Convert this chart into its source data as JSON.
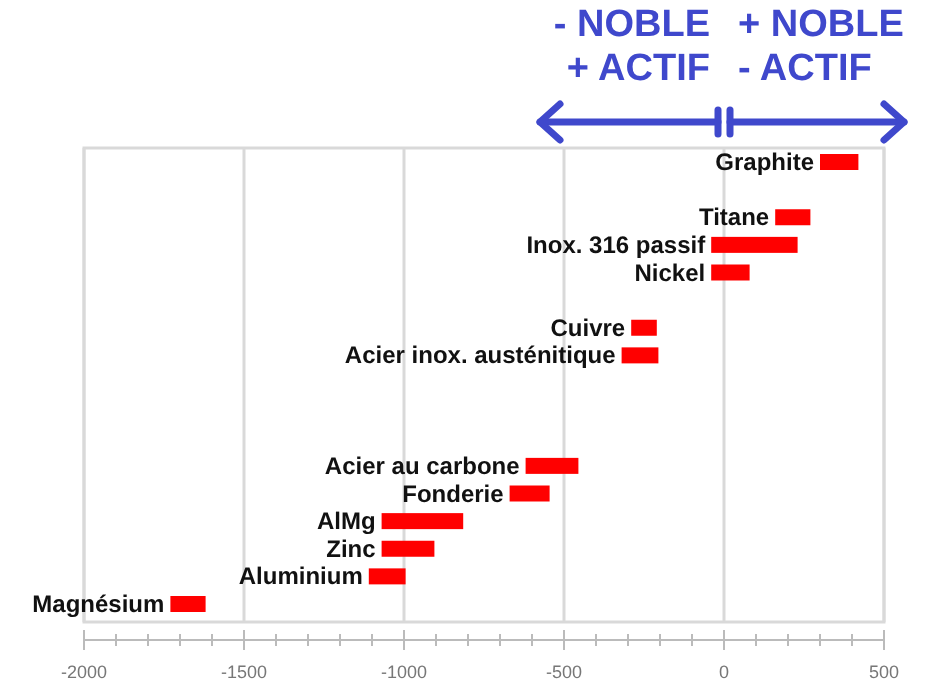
{
  "chart_data": {
    "type": "bar",
    "orientation": "horizontal",
    "categories": [
      "Graphite",
      null,
      "Titane",
      "Inox. 316 passif",
      "Nickel",
      null,
      "Cuivre",
      "Acier inox. austénitique",
      null,
      null,
      null,
      "Acier au carbone",
      "Fonderie",
      "AlMg",
      "Zinc",
      "Aluminium",
      "Magnésium"
    ],
    "base": [
      300,
      null,
      160,
      -40,
      -40,
      null,
      -290,
      -320,
      null,
      null,
      null,
      -620,
      -670,
      -1070,
      -1070,
      -1110,
      -1730
    ],
    "values": [
      120,
      null,
      110,
      270,
      120,
      null,
      80,
      115,
      null,
      null,
      null,
      165,
      125,
      255,
      165,
      115,
      110
    ],
    "color": "#ff0000",
    "xlim": [
      -2000,
      500
    ],
    "xticks": [
      -2000,
      {
        "value": -1900,
        "label": null
      },
      {
        "value": -1800,
        "label": null
      },
      {
        "value": -1700,
        "label": null
      },
      {
        "value": -1600,
        "label": null
      },
      -1500,
      {
        "value": -1400,
        "label": null
      },
      {
        "value": -1300,
        "label": null
      },
      {
        "value": -1200,
        "label": null
      },
      {
        "value": -1100,
        "label": null
      },
      -1000,
      {
        "value": -900,
        "label": null
      },
      {
        "value": -800,
        "label": null
      },
      {
        "value": -700,
        "label": null
      },
      {
        "value": -600,
        "label": null
      },
      -500,
      {
        "value": -400,
        "label": null
      },
      {
        "value": -300,
        "label": null
      },
      {
        "value": -200,
        "label": null
      },
      {
        "value": -100,
        "label": null
      },
      0,
      {
        "value": 100,
        "label": null
      },
      {
        "value": 200,
        "label": null
      },
      {
        "value": 300,
        "label": null
      },
      {
        "value": 400,
        "label": null
      },
      500
    ],
    "grid": "x",
    "annotations": [
      "- NOBLE\n+ ACTIF",
      "+ NOBLE\n- ACTIF"
    ]
  }
}
